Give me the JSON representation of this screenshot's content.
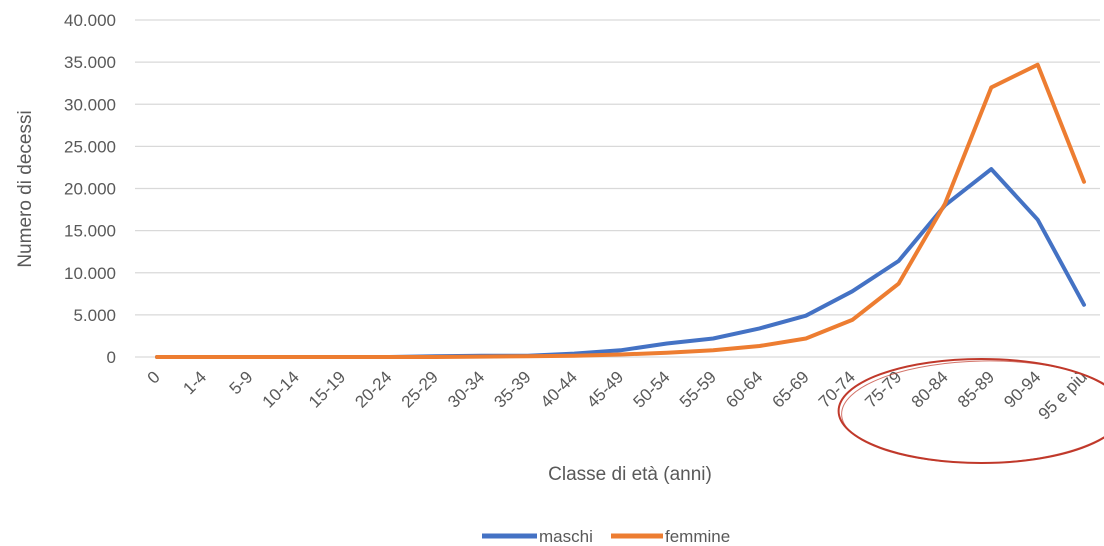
{
  "chart_data": {
    "type": "line",
    "xlabel": "Classe di età (anni)",
    "ylabel": "Numero di decessi",
    "ylim": [
      0,
      40000
    ],
    "yticks": [
      "0",
      "5.000",
      "10.000",
      "15.000",
      "20.000",
      "25.000",
      "30.000",
      "35.000",
      "40.000"
    ],
    "grid": "horizontal",
    "legend_position": "bottom",
    "categories": [
      "0",
      "1-4",
      "5-9",
      "10-14",
      "15-19",
      "20-24",
      "25-29",
      "30-34",
      "35-39",
      "40-44",
      "45-49",
      "50-54",
      "55-59",
      "60-64",
      "65-69",
      "70-74",
      "75-79",
      "80-84",
      "85-89",
      "90-94",
      "95 e più"
    ],
    "series": [
      {
        "name": "maschi",
        "color": "#4472C4",
        "values": [
          0,
          0,
          0,
          0,
          0,
          0,
          100,
          150,
          150,
          400,
          800,
          1600,
          2200,
          3400,
          4900,
          7800,
          11400,
          18000,
          22300,
          16300,
          6200
        ]
      },
      {
        "name": "femmine",
        "color": "#ED7D31",
        "values": [
          0,
          0,
          0,
          0,
          0,
          0,
          0,
          50,
          100,
          150,
          300,
          500,
          800,
          1300,
          2200,
          4400,
          8700,
          18200,
          32000,
          34700,
          20800
        ]
      }
    ],
    "annotation": {
      "shape": "ellipse",
      "color": "#C0392B",
      "from_category": "75-79",
      "to_category": "95 e più"
    }
  }
}
